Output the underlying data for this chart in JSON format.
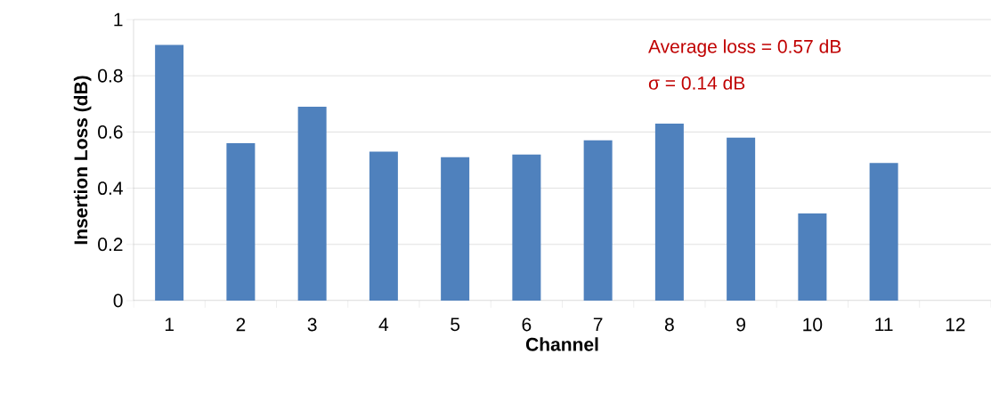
{
  "chart_data": {
    "type": "bar",
    "xlabel": "Channel",
    "ylabel": "Insertion Loss  (dB)",
    "categories": [
      "1",
      "2",
      "3",
      "4",
      "5",
      "6",
      "7",
      "8",
      "9",
      "10",
      "11",
      "12"
    ],
    "values": [
      0.91,
      0.56,
      0.69,
      0.53,
      0.51,
      0.52,
      0.57,
      0.63,
      0.58,
      0.31,
      0.49,
      null
    ],
    "color": "#4f81bd",
    "ylim": [
      0,
      1
    ],
    "yticks": [
      0,
      0.2,
      0.4,
      0.6,
      0.8,
      1
    ],
    "grid": "y",
    "annotations": [
      "Average loss = 0.57 dB",
      "σ = 0.14 dB"
    ]
  }
}
